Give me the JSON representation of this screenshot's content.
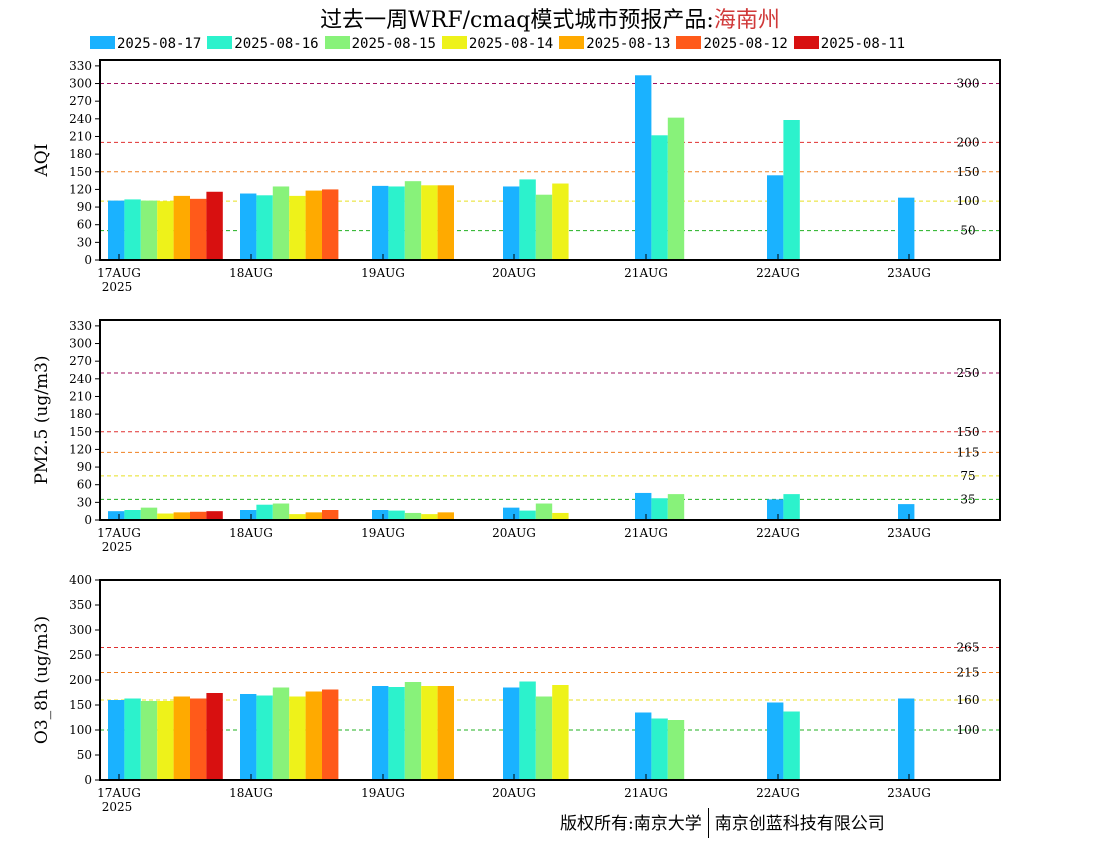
{
  "title": {
    "prefix": "过去一周WRF/cmaq模式城市预报产品:",
    "city": "海南州"
  },
  "footer": {
    "left": "版权所有:南京大学",
    "right": "南京创蓝科技有限公司"
  },
  "legend": [
    {
      "label": "2025-08-17",
      "color": "#1ab2ff"
    },
    {
      "label": "2025-08-16",
      "color": "#2cf2cc"
    },
    {
      "label": "2025-08-15",
      "color": "#88f27a"
    },
    {
      "label": "2025-08-14",
      "color": "#eef21a"
    },
    {
      "label": "2025-08-13",
      "color": "#ffaa00"
    },
    {
      "label": "2025-08-12",
      "color": "#ff5a1a"
    },
    {
      "label": "2025-08-11",
      "color": "#d81010"
    }
  ],
  "chart_data": [
    {
      "type": "bar",
      "ylabel": "AQI",
      "ylim": [
        0,
        340
      ],
      "yticks": [
        0,
        30,
        60,
        90,
        120,
        150,
        180,
        210,
        240,
        270,
        300,
        330
      ],
      "categories": [
        "17AUG",
        "18AUG",
        "19AUG",
        "20AUG",
        "21AUG",
        "22AUG",
        "23AUG"
      ],
      "year_label": "2025",
      "thresholds": [
        {
          "value": 300,
          "label": "300",
          "color": "#a01060"
        },
        {
          "value": 200,
          "label": "200",
          "color": "#e03030"
        },
        {
          "value": 150,
          "label": "150",
          "color": "#f08020"
        },
        {
          "value": 100,
          "label": "100",
          "color": "#e8e020"
        },
        {
          "value": 50,
          "label": "50",
          "color": "#20b020"
        }
      ],
      "series": [
        {
          "name": "2025-08-17",
          "values": [
            101,
            113,
            126,
            125,
            314,
            144,
            106
          ]
        },
        {
          "name": "2025-08-16",
          "values": [
            103,
            110,
            125,
            137,
            212,
            238,
            null
          ]
        },
        {
          "name": "2025-08-15",
          "values": [
            101,
            125,
            134,
            111,
            242,
            null,
            null
          ]
        },
        {
          "name": "2025-08-14",
          "values": [
            100,
            109,
            127,
            130,
            null,
            null,
            null
          ]
        },
        {
          "name": "2025-08-13",
          "values": [
            109,
            118,
            127,
            null,
            null,
            null,
            null
          ]
        },
        {
          "name": "2025-08-12",
          "values": [
            104,
            120,
            null,
            null,
            null,
            null,
            null
          ]
        },
        {
          "name": "2025-08-11",
          "values": [
            116,
            null,
            null,
            null,
            null,
            null,
            null
          ]
        }
      ]
    },
    {
      "type": "bar",
      "ylabel": "PM2.5 (ug/m3)",
      "ylim": [
        0,
        340
      ],
      "yticks": [
        0,
        30,
        60,
        90,
        120,
        150,
        180,
        210,
        240,
        270,
        300,
        330
      ],
      "categories": [
        "17AUG",
        "18AUG",
        "19AUG",
        "20AUG",
        "21AUG",
        "22AUG",
        "23AUG"
      ],
      "year_label": "2025",
      "thresholds": [
        {
          "value": 250,
          "label": "250",
          "color": "#a01060"
        },
        {
          "value": 150,
          "label": "150",
          "color": "#e03030"
        },
        {
          "value": 115,
          "label": "115",
          "color": "#f08020"
        },
        {
          "value": 75,
          "label": "75",
          "color": "#e8e020"
        },
        {
          "value": 35,
          "label": "35",
          "color": "#20b020"
        }
      ],
      "series": [
        {
          "name": "2025-08-17",
          "values": [
            15,
            17,
            17,
            21,
            46,
            35,
            27
          ]
        },
        {
          "name": "2025-08-16",
          "values": [
            17,
            26,
            16,
            16,
            37,
            44,
            null
          ]
        },
        {
          "name": "2025-08-15",
          "values": [
            21,
            28,
            12,
            28,
            44,
            null,
            null
          ]
        },
        {
          "name": "2025-08-14",
          "values": [
            11,
            10,
            10,
            12,
            null,
            null,
            null
          ]
        },
        {
          "name": "2025-08-13",
          "values": [
            13,
            13,
            13,
            null,
            null,
            null,
            null
          ]
        },
        {
          "name": "2025-08-12",
          "values": [
            14,
            17,
            null,
            null,
            null,
            null,
            null
          ]
        },
        {
          "name": "2025-08-11",
          "values": [
            15,
            null,
            null,
            null,
            null,
            null,
            null
          ]
        }
      ]
    },
    {
      "type": "bar",
      "ylabel": "O3_8h (ug/m3)",
      "ylim": [
        0,
        400
      ],
      "yticks": [
        0,
        50,
        100,
        150,
        200,
        250,
        300,
        350,
        400
      ],
      "categories": [
        "17AUG",
        "18AUG",
        "19AUG",
        "20AUG",
        "21AUG",
        "22AUG",
        "23AUG"
      ],
      "year_label": "2025",
      "thresholds": [
        {
          "value": 265,
          "label": "265",
          "color": "#e03030"
        },
        {
          "value": 215,
          "label": "215",
          "color": "#f08020"
        },
        {
          "value": 160,
          "label": "160",
          "color": "#e8e020"
        },
        {
          "value": 100,
          "label": "100",
          "color": "#20b020"
        }
      ],
      "series": [
        {
          "name": "2025-08-17",
          "values": [
            160,
            172,
            188,
            185,
            135,
            155,
            163
          ]
        },
        {
          "name": "2025-08-16",
          "values": [
            163,
            169,
            186,
            197,
            123,
            137,
            null
          ]
        },
        {
          "name": "2025-08-15",
          "values": [
            158,
            185,
            196,
            167,
            120,
            null,
            null
          ]
        },
        {
          "name": "2025-08-14",
          "values": [
            158,
            167,
            188,
            190,
            null,
            null,
            null
          ]
        },
        {
          "name": "2025-08-13",
          "values": [
            167,
            177,
            188,
            null,
            null,
            null,
            null
          ]
        },
        {
          "name": "2025-08-12",
          "values": [
            163,
            181,
            null,
            null,
            null,
            null,
            null
          ]
        },
        {
          "name": "2025-08-11",
          "values": [
            174,
            null,
            null,
            null,
            null,
            null,
            null
          ]
        }
      ]
    }
  ]
}
